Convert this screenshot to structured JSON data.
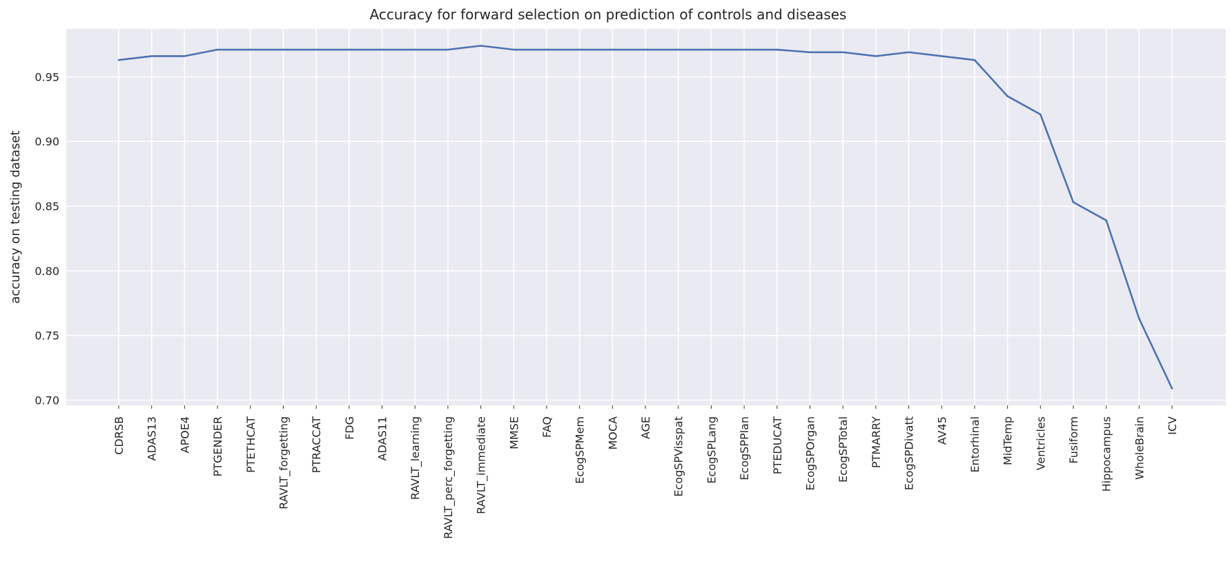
{
  "chart_data": {
    "type": "line",
    "title": "Accuracy for forward selection on prediction of controls and diseases",
    "xlabel": "",
    "ylabel": "accuracy on testing dataset",
    "categories": [
      "CDRSB",
      "ADAS13",
      "APOE4",
      "PTGENDER",
      "PTETHCAT",
      "RAVLT_forgetting",
      "PTRACCAT",
      "FDG",
      "ADAS11",
      "RAVLT_learning",
      "RAVLT_perc_forgetting",
      "RAVLT_immediate",
      "MMSE",
      "FAQ",
      "EcogSPMem",
      "MOCA",
      "AGE",
      "EcogSPVisspat",
      "EcogSPLang",
      "EcogSPPlan",
      "PTEDUCAT",
      "EcogSPOrgan",
      "EcogSPTotal",
      "PTMARRY",
      "EcogSPDivatt",
      "AV45",
      "Entorhinal",
      "MidTemp",
      "Ventricles",
      "Fusiform",
      "Hippocampus",
      "WholeBrain",
      "ICV"
    ],
    "series": [
      {
        "values": [
          0.963,
          0.966,
          0.966,
          0.971,
          0.971,
          0.971,
          0.971,
          0.971,
          0.971,
          0.971,
          0.971,
          0.974,
          0.971,
          0.971,
          0.971,
          0.971,
          0.971,
          0.971,
          0.971,
          0.971,
          0.971,
          0.969,
          0.969,
          0.966,
          0.969,
          0.966,
          0.963,
          0.935,
          0.921,
          0.853,
          0.839,
          0.763,
          0.709
        ],
        "color": "#4c72b0"
      }
    ],
    "yticks": [
      "0.70",
      "0.75",
      "0.80",
      "0.85",
      "0.90",
      "0.95"
    ],
    "ylim": [
      0.696,
      0.987
    ],
    "grid": true,
    "background": "#eaeaf2"
  }
}
